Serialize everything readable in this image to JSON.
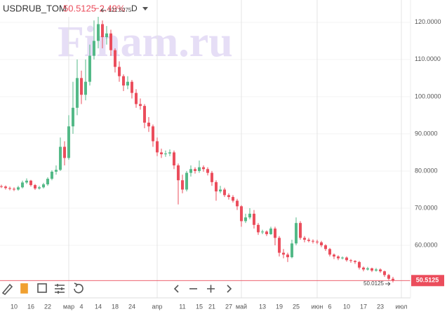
{
  "chart_data": {
    "type": "candlestick",
    "symbol": "USDRUB_TOM",
    "change": "−2.49%",
    "interval": "D",
    "watermark": "Finam.ru",
    "up_color": "#53b987",
    "down_color": "#eb4d5c",
    "open": [
      75.9,
      75.8,
      75.4,
      75.2,
      75.0,
      75.6,
      76.9,
      77.4,
      76.2,
      75.3,
      75.6,
      76.4,
      77.9,
      79.8,
      80.3,
      86.5,
      83.5,
      92.0,
      97.0,
      105.0,
      100.5,
      104.0,
      111.0,
      115.0,
      119.5,
      116.0,
      117.0,
      112.5,
      108.0,
      105.5,
      103.0,
      104.0,
      101.0,
      98.0,
      97.5,
      93.0,
      92.0,
      88.0,
      85.0,
      84.5,
      84.7,
      85.0,
      81.5,
      77.5,
      75.0,
      79.5,
      80.5,
      80.0,
      81.0,
      80.5,
      79.5,
      77.0,
      74.5,
      75.0,
      73.5,
      73.0,
      72.0,
      70.5,
      66.5,
      67.5,
      68.5,
      65.5,
      63.5,
      63.7,
      63.0,
      64.5,
      62.0,
      58.0,
      57.5,
      56.8,
      60.5,
      66.0,
      62.0,
      61.5,
      61.2,
      61.0,
      60.8,
      60.0,
      59.0,
      57.5,
      57.0,
      56.5,
      56.7,
      56.0,
      55.8,
      55.5,
      54.0,
      53.5,
      53.8,
      53.2,
      53.5,
      53.0,
      52.0,
      51.0
    ],
    "close": [
      75.8,
      75.4,
      75.2,
      75.0,
      75.6,
      76.9,
      77.4,
      76.2,
      75.3,
      75.6,
      76.4,
      77.9,
      79.8,
      80.3,
      86.5,
      83.5,
      92.0,
      97.0,
      105.0,
      100.5,
      104.0,
      111.0,
      115.0,
      119.5,
      116.0,
      117.0,
      112.5,
      108.0,
      105.5,
      103.0,
      104.0,
      101.0,
      98.0,
      97.5,
      93.0,
      92.0,
      88.0,
      85.0,
      84.5,
      84.7,
      85.0,
      81.5,
      77.5,
      75.0,
      79.5,
      80.5,
      80.0,
      81.0,
      80.5,
      79.5,
      77.0,
      74.5,
      75.0,
      73.5,
      73.0,
      72.0,
      70.5,
      66.5,
      67.5,
      68.5,
      65.5,
      63.5,
      63.7,
      63.0,
      64.5,
      62.0,
      58.0,
      57.5,
      56.8,
      60.5,
      66.0,
      62.0,
      61.5,
      61.2,
      61.0,
      60.8,
      60.0,
      59.0,
      57.5,
      57.0,
      56.5,
      56.7,
      56.0,
      55.8,
      55.5,
      54.0,
      53.5,
      53.8,
      53.2,
      53.5,
      53.0,
      52.0,
      51.0,
      50.5125
    ],
    "high": [
      76.3,
      76.1,
      75.8,
      75.6,
      76.0,
      77.4,
      78.0,
      77.6,
      76.5,
      76.0,
      76.8,
      78.3,
      80.2,
      81.5,
      89.0,
      88.0,
      95.0,
      104.0,
      110.0,
      107.0,
      110.0,
      114.0,
      120.5,
      121.5275,
      120.5,
      119.0,
      118.0,
      113.0,
      109.5,
      106.0,
      105.5,
      104.5,
      102.0,
      99.5,
      98.0,
      94.5,
      92.5,
      89.0,
      86.0,
      85.5,
      85.8,
      85.5,
      82.0,
      79.0,
      80.0,
      81.5,
      81.0,
      82.8,
      81.5,
      81.0,
      80.0,
      77.5,
      76.0,
      75.5,
      74.0,
      73.5,
      72.5,
      70.8,
      68.5,
      70.0,
      69.5,
      66.0,
      64.2,
      64.0,
      65.0,
      65.0,
      62.5,
      59.0,
      58.0,
      61.5,
      67.5,
      66.5,
      62.5,
      62.0,
      61.6,
      61.5,
      61.2,
      60.3,
      59.3,
      57.8,
      57.3,
      57.0,
      57.0,
      56.3,
      56.0,
      55.8,
      54.3,
      54.2,
      54.0,
      53.9,
      53.8,
      53.2,
      52.3,
      51.5
    ],
    "low": [
      75.4,
      75.0,
      74.8,
      74.6,
      74.7,
      75.3,
      76.5,
      75.8,
      74.9,
      75.0,
      75.3,
      76.0,
      77.5,
      79.0,
      80.0,
      81.5,
      83.0,
      90.0,
      95.0,
      98.0,
      99.0,
      103.0,
      110.0,
      113.0,
      113.0,
      114.0,
      111.0,
      106.5,
      104.0,
      101.5,
      102.0,
      99.5,
      97.0,
      96.5,
      91.5,
      90.5,
      86.5,
      84.0,
      83.5,
      83.8,
      84.0,
      80.5,
      71.0,
      74.0,
      74.5,
      78.5,
      79.3,
      79.5,
      79.8,
      78.8,
      76.0,
      72.0,
      74.0,
      73.0,
      72.3,
      71.5,
      69.5,
      65.0,
      66.0,
      67.0,
      64.5,
      62.8,
      63.0,
      62.5,
      62.8,
      60.0,
      57.0,
      56.5,
      55.5,
      56.5,
      60.0,
      61.5,
      60.8,
      60.8,
      60.5,
      60.3,
      59.5,
      58.5,
      57.0,
      56.3,
      56.0,
      56.2,
      55.6,
      55.3,
      55.0,
      53.5,
      53.0,
      53.2,
      52.8,
      52.9,
      52.6,
      51.5,
      50.6,
      50.0125
    ],
    "xlim": [
      -0.33,
      97.17
    ],
    "xticks": [
      {
        "value": 3,
        "label": "10"
      },
      {
        "value": 7,
        "label": "16"
      },
      {
        "value": 11,
        "label": "22"
      },
      {
        "value": 16,
        "label": "мар"
      },
      {
        "value": 19,
        "label": "4"
      },
      {
        "value": 23,
        "label": "14"
      },
      {
        "value": 27,
        "label": "18"
      },
      {
        "value": 31,
        "label": "24"
      },
      {
        "value": 37,
        "label": "апр"
      },
      {
        "value": 43,
        "label": "11"
      },
      {
        "value": 47,
        "label": "15"
      },
      {
        "value": 50,
        "label": "21"
      },
      {
        "value": 54,
        "label": "27"
      },
      {
        "value": 57,
        "label": "май"
      },
      {
        "value": 62,
        "label": "13"
      },
      {
        "value": 66,
        "label": "19"
      },
      {
        "value": 70,
        "label": "25"
      },
      {
        "value": 75,
        "label": "июн"
      },
      {
        "value": 78,
        "label": "6"
      },
      {
        "value": 82,
        "label": "10"
      },
      {
        "value": 86,
        "label": "17"
      },
      {
        "value": 90,
        "label": "23"
      },
      {
        "value": 95,
        "label": "июл"
      }
    ],
    "ylim": [
      46.8,
      126
    ],
    "yticks": [
      {
        "value": 60,
        "label": "60.0000"
      },
      {
        "value": 70,
        "label": "70.0000"
      },
      {
        "value": 80,
        "label": "80.0000"
      },
      {
        "value": 90,
        "label": "90.0000"
      },
      {
        "value": 100,
        "label": "100.0000"
      },
      {
        "value": 110,
        "label": "110.0000"
      },
      {
        "value": 120,
        "label": "120.0000"
      }
    ]
  }
}
